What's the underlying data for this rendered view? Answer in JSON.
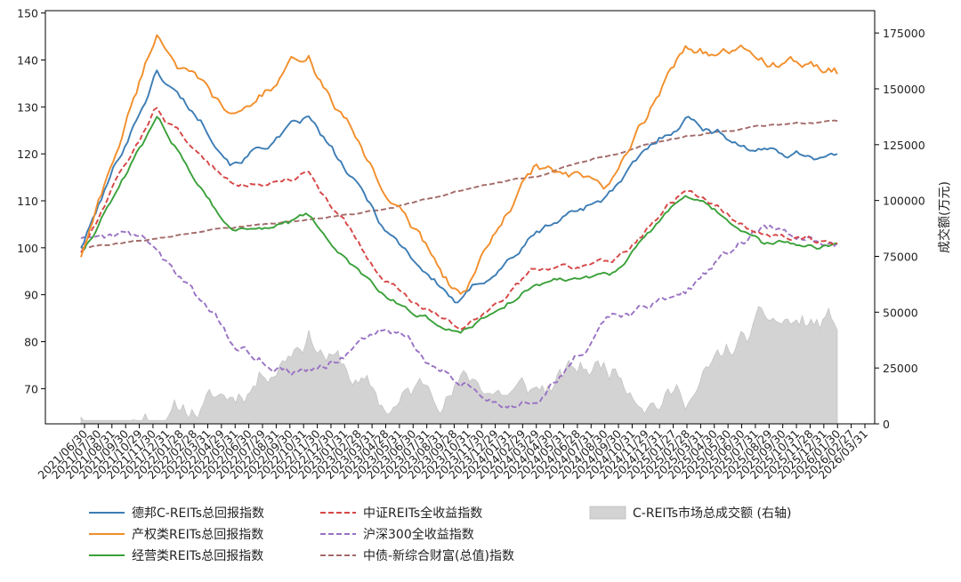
{
  "chart_data": {
    "type": "line",
    "x": [
      "2021/06/30",
      "2021/12/31",
      "2022/06/30",
      "2022/12/30",
      "2023/06/30",
      "2023/12/29",
      "2024/06/28",
      "2024/12/31",
      "2025/06/30",
      "2025/12/31",
      "2026/03/31"
    ],
    "x_tick_labels": [
      "2021/06/30",
      "2021/07/30",
      "2021/08/31",
      "2021/09/30",
      "2021/10/29",
      "2021/11/30",
      "2021/12/31",
      "2022/01/28",
      "2022/02/28",
      "2022/03/31",
      "2022/04/29",
      "2022/05/31",
      "2022/06/30",
      "2022/07/29",
      "2022/08/31",
      "2022/09/30",
      "2022/10/31",
      "2022/11/30",
      "2022/12/30",
      "2023/01/31",
      "2023/02/28",
      "2023/03/31",
      "2023/04/28",
      "2023/05/31",
      "2023/06/30",
      "2023/07/31",
      "2023/08/31",
      "2023/09/28",
      "2023/10/31",
      "2023/11/30",
      "2023/12/29",
      "2024/01/31",
      "2024/02/29",
      "2024/03/29",
      "2024/04/30",
      "2024/05/31",
      "2024/06/28",
      "2024/07/31",
      "2024/08/30",
      "2024/09/30",
      "2024/10/31",
      "2024/11/29",
      "2024/12/31",
      "2025/01/27",
      "2025/02/28",
      "2025/03/31",
      "2025/04/30",
      "2025/05/30",
      "2025/06/30",
      "2025/07/31",
      "2025/08/29",
      "2025/09/30",
      "2025/10/31",
      "2025/11/28",
      "2025/12/31",
      "2026/01/30",
      "2026/02/27",
      "2026/03/31"
    ],
    "y_left": {
      "ticks": [
        70,
        80,
        90,
        100,
        110,
        120,
        130,
        140,
        150
      ],
      "ylim": [
        62.5,
        150.5
      ]
    },
    "y_right": {
      "label": "成交额(万元)",
      "ticks": [
        0,
        25000,
        50000,
        75000,
        100000,
        125000,
        150000,
        175000
      ],
      "ylim": [
        0,
        185000
      ]
    },
    "series": [
      {
        "name": "德邦C-REITs总回报指数",
        "color": "#3d7db5",
        "style": "solid",
        "axis": "left",
        "values": [
          100,
          138,
          120,
          127,
          104,
          88,
          103,
          112,
          128,
          121,
          120
        ]
      },
      {
        "name": "产权类REITs总回报指数",
        "color": "#f28e2b",
        "style": "solid",
        "axis": "left",
        "values": [
          98,
          146,
          126,
          141,
          113,
          90,
          116,
          111,
          143,
          140,
          137
        ]
      },
      {
        "name": "经营类REITs总回报指数",
        "color": "#3aa13a",
        "style": "solid",
        "axis": "left",
        "values": [
          99,
          127,
          104,
          106,
          89,
          82,
          93,
          95,
          111,
          100,
          101
        ]
      },
      {
        "name": "中证REITs全收益指数",
        "color": "#d64545",
        "style": "dashed",
        "axis": "left",
        "values": [
          99,
          129,
          113,
          117,
          93,
          82,
          95,
          97,
          112,
          103,
          101
        ]
      },
      {
        "name": "沪深300全收益指数",
        "color": "#9a72c4",
        "style": "dashed",
        "axis": "left",
        "values": [
          102,
          100,
          79,
          74,
          82,
          72,
          68,
          84,
          90,
          104,
          101
        ]
      },
      {
        "name": "中债-新综合财富(总值)指数",
        "color": "#a36a6a",
        "style": "dashed",
        "axis": "left",
        "values": [
          100,
          102,
          104,
          106,
          108,
          112,
          115,
          120,
          124,
          126,
          127
        ]
      }
    ],
    "area": {
      "name": "C-REITs市场总成交额 (右轴)",
      "color": "#d3d3d3",
      "axis": "right",
      "values": [
        3000,
        8000,
        12000,
        50000,
        6000,
        22000,
        14000,
        25000,
        18000,
        40000,
        42000
      ]
    },
    "legend": {
      "position": "bottom",
      "columns": 3
    }
  }
}
